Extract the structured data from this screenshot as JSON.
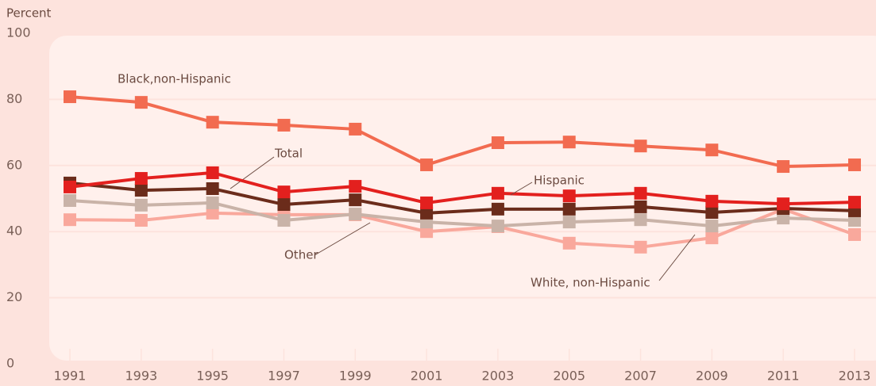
{
  "chart_data": {
    "type": "line",
    "y_label": "Percent",
    "categories": [
      "1991",
      "1993",
      "1995",
      "1997",
      "1999",
      "2001",
      "2003",
      "2005",
      "2007",
      "2009",
      "2011",
      "2013"
    ],
    "ylim": [
      0,
      100
    ],
    "yticks": [
      0,
      20,
      40,
      60,
      80,
      100
    ],
    "grid": true,
    "series": [
      {
        "name": "White, non-Hispanic",
        "color": "#f9a89c",
        "values": [
          43.6,
          43.4,
          45.6,
          45.1,
          45.1,
          40.0,
          41.5,
          36.5,
          35.3,
          38.1,
          46.8,
          39.1
        ]
      },
      {
        "name": "Other",
        "color": "#c9b3a8",
        "values": [
          49.4,
          48.0,
          48.7,
          43.4,
          45.3,
          42.9,
          41.7,
          42.9,
          43.6,
          41.7,
          44.1,
          43.4
        ]
      },
      {
        "name": "Total",
        "color": "#6b2c1b",
        "values": [
          54.7,
          52.5,
          53.0,
          48.2,
          49.6,
          45.6,
          46.8,
          46.8,
          47.5,
          45.8,
          47.0,
          46.3
        ]
      },
      {
        "name": "Hispanic",
        "color": "#e3201e",
        "values": [
          53.5,
          56.1,
          57.8,
          52.0,
          53.7,
          48.7,
          51.6,
          50.8,
          51.6,
          49.2,
          48.4,
          48.9
        ]
      },
      {
        "name": "Black,non-Hispanic",
        "color": "#f26b50",
        "values": [
          80.8,
          79.1,
          73.1,
          72.2,
          71.0,
          60.2,
          66.9,
          67.1,
          65.9,
          64.7,
          59.7,
          60.2
        ]
      }
    ]
  }
}
